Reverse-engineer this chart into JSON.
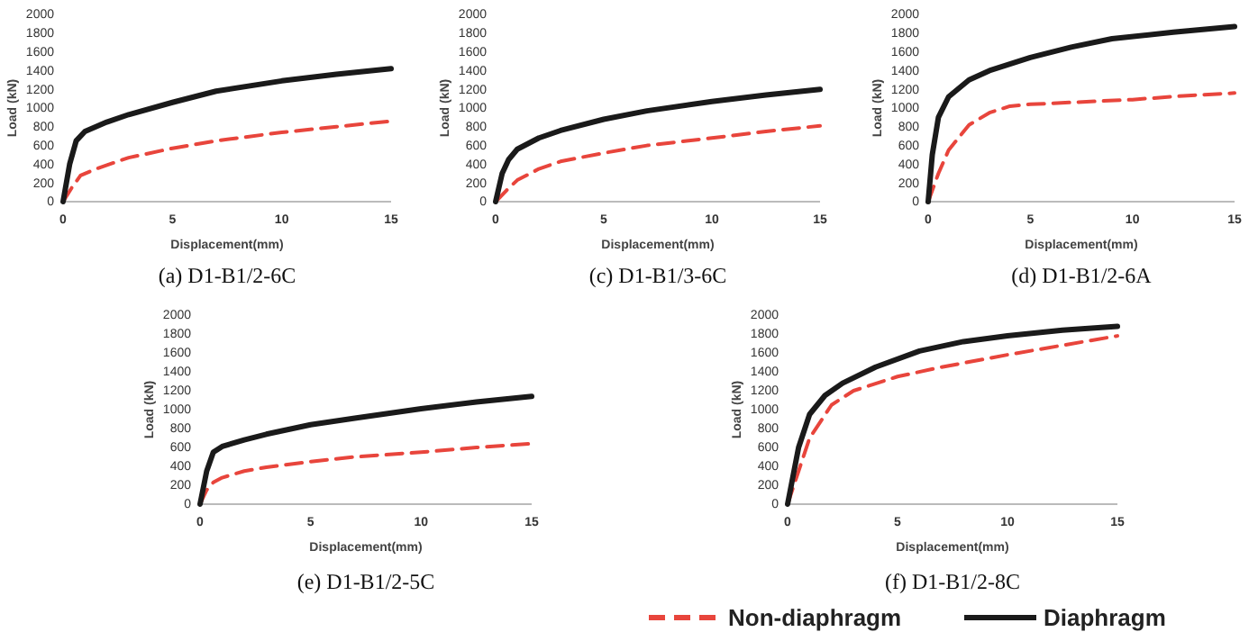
{
  "chart_data": [
    {
      "type": "line",
      "title": "(a)  D1-B1/2-6C",
      "xlabel": "Displacement(mm)",
      "ylabel": "Load (kN)",
      "xlim": [
        0,
        15
      ],
      "xticks": [
        0,
        5,
        10,
        15
      ],
      "ylim": [
        0,
        2000
      ],
      "yticks": [
        0,
        200,
        400,
        600,
        800,
        1000,
        1200,
        1400,
        1600,
        1800,
        2000
      ],
      "grid": false,
      "legend": false,
      "marker": "none",
      "series": [
        {
          "color": "#e8453c",
          "line_style": "dashed",
          "x": [
            0,
            0.4,
            0.8,
            1.5,
            3,
            5,
            7,
            10,
            12.5,
            15
          ],
          "values": [
            0,
            150,
            280,
            350,
            470,
            570,
            650,
            740,
            800,
            860
          ]
        },
        {
          "color": "#1a1a1a",
          "line_style": "solid",
          "x": [
            0,
            0.3,
            0.6,
            1,
            2,
            3,
            5,
            7,
            10,
            12.5,
            15
          ],
          "values": [
            0,
            400,
            650,
            750,
            850,
            930,
            1060,
            1180,
            1290,
            1360,
            1420
          ]
        }
      ]
    },
    {
      "type": "line",
      "title": "(c)  D1-B1/3-6C",
      "xlabel": "Displacement(mm)",
      "ylabel": "Load (kN)",
      "xlim": [
        0,
        15
      ],
      "xticks": [
        0,
        5,
        10,
        15
      ],
      "ylim": [
        0,
        2000
      ],
      "yticks": [
        0,
        200,
        400,
        600,
        800,
        1000,
        1200,
        1400,
        1600,
        1800,
        2000
      ],
      "grid": false,
      "legend": false,
      "marker": "none",
      "series": [
        {
          "color": "#e8453c",
          "line_style": "dashed",
          "x": [
            0,
            0.5,
            1,
            2,
            3,
            5,
            7,
            10,
            12.5,
            15
          ],
          "values": [
            0,
            120,
            230,
            350,
            430,
            520,
            600,
            680,
            750,
            810
          ]
        },
        {
          "color": "#1a1a1a",
          "line_style": "solid",
          "x": [
            0,
            0.3,
            0.6,
            1,
            2,
            3,
            5,
            7,
            10,
            12.5,
            15
          ],
          "values": [
            0,
            300,
            450,
            560,
            680,
            760,
            880,
            970,
            1070,
            1140,
            1200
          ]
        }
      ]
    },
    {
      "type": "line",
      "title": "(d)  D1-B1/2-6A",
      "xlabel": "Displacement(mm)",
      "ylabel": "Load (kN)",
      "xlim": [
        0,
        15
      ],
      "xticks": [
        0,
        5,
        10,
        15
      ],
      "ylim": [
        0,
        2000
      ],
      "yticks": [
        0,
        200,
        400,
        600,
        800,
        1000,
        1200,
        1400,
        1600,
        1800,
        2000
      ],
      "grid": false,
      "legend": false,
      "marker": "none",
      "series": [
        {
          "color": "#e8453c",
          "line_style": "dashed",
          "x": [
            0,
            0.5,
            1,
            2,
            3,
            4,
            5,
            7,
            10,
            12.5,
            15
          ],
          "values": [
            0,
            300,
            550,
            820,
            950,
            1020,
            1040,
            1060,
            1090,
            1130,
            1160
          ]
        },
        {
          "color": "#1a1a1a",
          "line_style": "solid",
          "x": [
            0,
            0.2,
            0.5,
            1,
            2,
            3,
            5,
            7,
            9,
            12,
            15
          ],
          "values": [
            0,
            500,
            900,
            1120,
            1300,
            1400,
            1540,
            1650,
            1740,
            1810,
            1870
          ]
        }
      ]
    },
    {
      "type": "line",
      "title": "(e)  D1-B1/2-5C",
      "xlabel": "Displacement(mm)",
      "ylabel": "Load (kN)",
      "xlim": [
        0,
        15
      ],
      "xticks": [
        0,
        5,
        10,
        15
      ],
      "ylim": [
        0,
        2000
      ],
      "yticks": [
        0,
        200,
        400,
        600,
        800,
        1000,
        1200,
        1400,
        1600,
        1800,
        2000
      ],
      "grid": false,
      "legend": false,
      "marker": "none",
      "series": [
        {
          "color": "#e8453c",
          "line_style": "dashed",
          "x": [
            0,
            0.3,
            0.6,
            1,
            2,
            3,
            5,
            7,
            10,
            12.5,
            15
          ],
          "values": [
            0,
            150,
            230,
            280,
            350,
            390,
            450,
            500,
            550,
            600,
            640
          ]
        },
        {
          "color": "#1a1a1a",
          "line_style": "solid",
          "x": [
            0,
            0.3,
            0.6,
            1,
            2,
            3,
            5,
            7,
            10,
            12.5,
            15
          ],
          "values": [
            0,
            350,
            550,
            610,
            680,
            740,
            840,
            910,
            1010,
            1080,
            1140
          ]
        }
      ]
    },
    {
      "type": "line",
      "title": "(f)  D1-B1/2-8C",
      "xlabel": "Displacement(mm)",
      "ylabel": "Load (kN)",
      "xlim": [
        0,
        15
      ],
      "xticks": [
        0,
        5,
        10,
        15
      ],
      "ylim": [
        0,
        2000
      ],
      "yticks": [
        0,
        200,
        400,
        600,
        800,
        1000,
        1200,
        1400,
        1600,
        1800,
        2000
      ],
      "grid": false,
      "legend": "bottom",
      "marker": "none",
      "series": [
        {
          "name": "Non-diaphragm",
          "color": "#e8453c",
          "line_style": "dashed",
          "x": [
            0,
            0.5,
            1,
            2,
            3,
            5,
            7,
            10,
            12.5,
            15
          ],
          "values": [
            0,
            350,
            700,
            1050,
            1200,
            1350,
            1450,
            1580,
            1680,
            1780
          ]
        },
        {
          "name": "Diaphragm",
          "color": "#1a1a1a",
          "line_style": "solid",
          "x": [
            0,
            0.5,
            1,
            1.7,
            2.5,
            4,
            6,
            8,
            10,
            12.5,
            15
          ],
          "values": [
            0,
            600,
            950,
            1150,
            1280,
            1450,
            1620,
            1720,
            1780,
            1840,
            1880
          ]
        }
      ]
    }
  ]
}
